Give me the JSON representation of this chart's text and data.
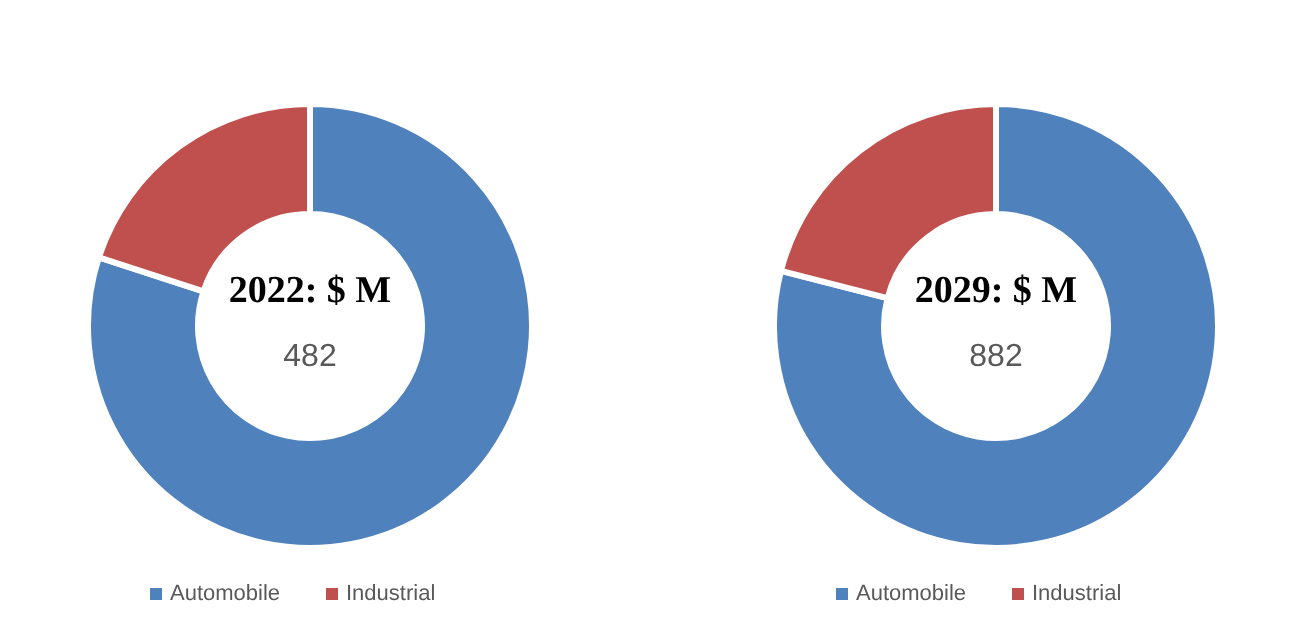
{
  "chart_data": [
    {
      "type": "donut",
      "title": "2022: $ M",
      "annotations": [
        "482"
      ],
      "categories": [
        "Automobile",
        "Industrial"
      ],
      "values": [
        80,
        20
      ],
      "colors": [
        "#4f81bd",
        "#c0504d"
      ],
      "legend": "bottom"
    },
    {
      "type": "donut",
      "title": "2029: $ M",
      "annotations": [
        "882"
      ],
      "categories": [
        "Automobile",
        "Industrial"
      ],
      "values": [
        79,
        21
      ],
      "colors": [
        "#4f81bd",
        "#c0504d"
      ],
      "legend": "bottom"
    }
  ]
}
